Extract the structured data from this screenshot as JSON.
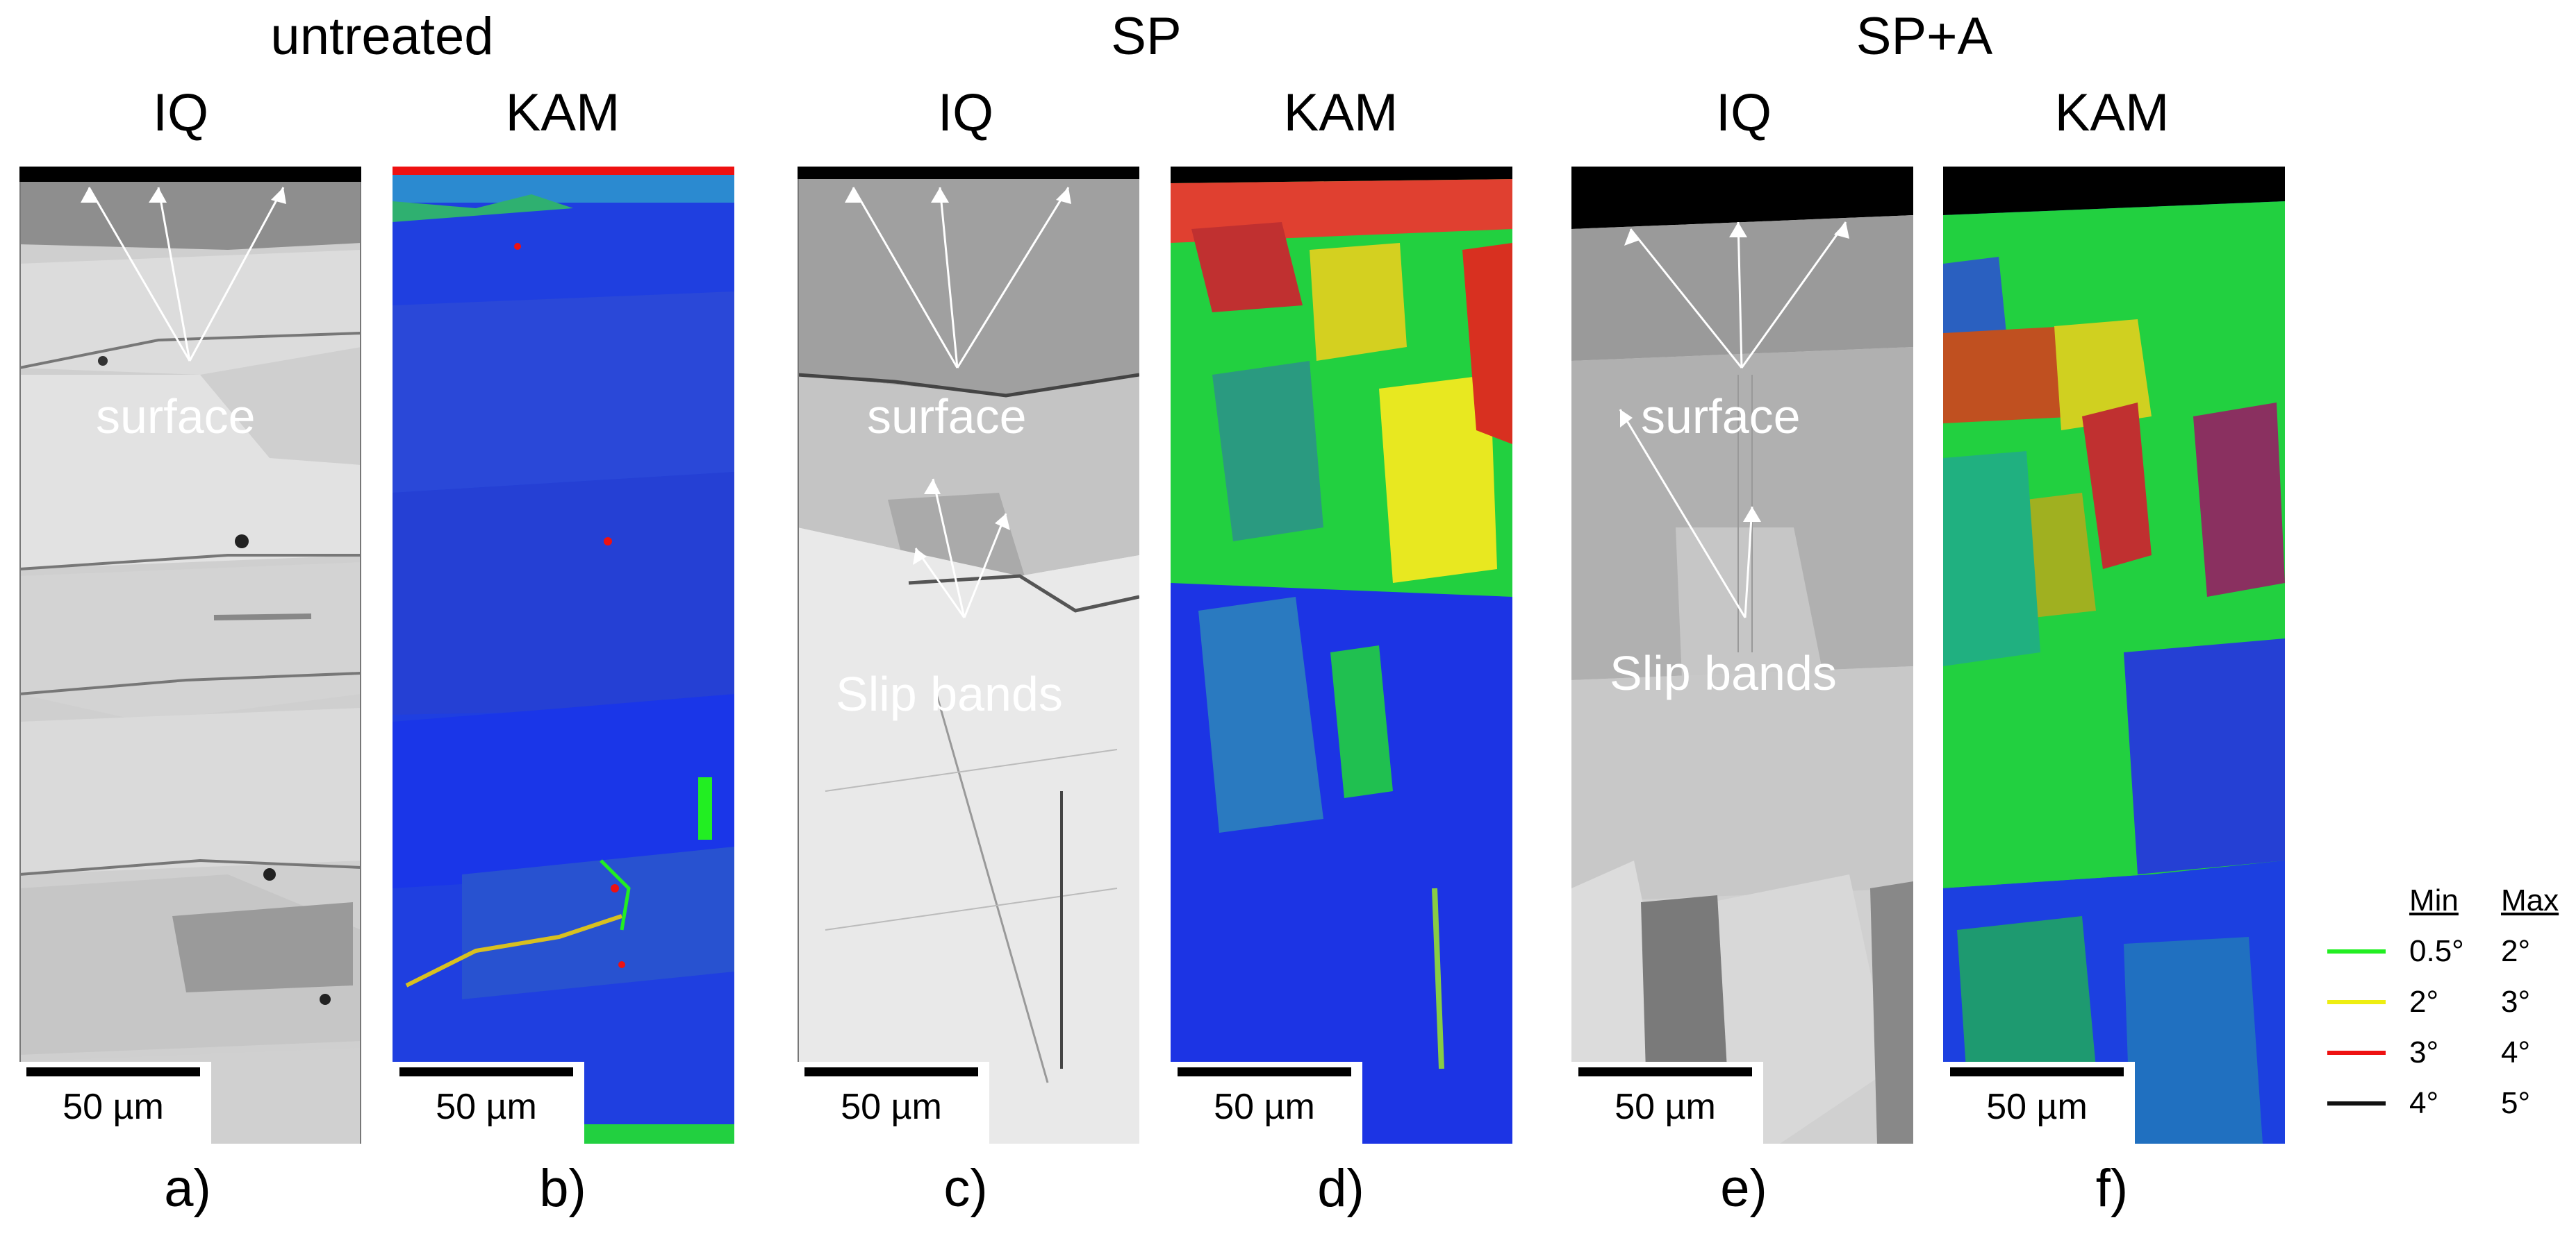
{
  "groups": [
    {
      "title": "untreated"
    },
    {
      "title": "SP"
    },
    {
      "title": "SP+A"
    }
  ],
  "columns": [
    {
      "title": "IQ",
      "label": "a)",
      "kind": "IQ"
    },
    {
      "title": "KAM",
      "label": "b)",
      "kind": "KAM"
    },
    {
      "title": "IQ",
      "label": "c)",
      "kind": "IQ"
    },
    {
      "title": "KAM",
      "label": "d)",
      "kind": "KAM"
    },
    {
      "title": "IQ",
      "label": "e)",
      "kind": "IQ"
    },
    {
      "title": "KAM",
      "label": "f)",
      "kind": "KAM"
    }
  ],
  "scale_bar": "50 µm",
  "annotations": {
    "surface": "surface",
    "slip_bands": "Slip bands"
  },
  "legend": {
    "min_header": "Min",
    "max_header": "Max",
    "rows": [
      {
        "min": "0.5°",
        "max": "2°",
        "color": "#22ee22"
      },
      {
        "min": "2°",
        "max": "3°",
        "color": "#eeee11"
      },
      {
        "min": "3°",
        "max": "4°",
        "color": "#ee1111"
      },
      {
        "min": "4°",
        "max": "5°",
        "color": "#111111"
      }
    ]
  },
  "colors": {
    "kam_background": "#1f3fe0",
    "kam_green": "#22ee22",
    "kam_yellow": "#eeee11",
    "kam_red": "#ee1111",
    "iq_light": "#d8d8d8",
    "iq_dark": "#555555"
  }
}
